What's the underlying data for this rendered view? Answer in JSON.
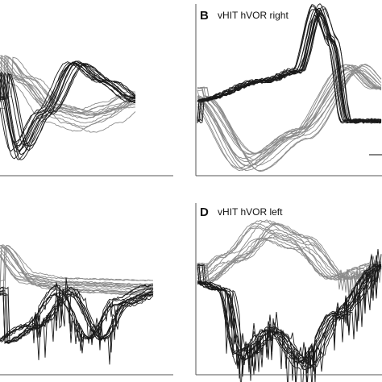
{
  "panels": [
    {
      "letter": "B",
      "title": "vHIT hVOR right"
    },
    {
      "letter": "D",
      "title": "vHIT hVOR left"
    }
  ]
}
